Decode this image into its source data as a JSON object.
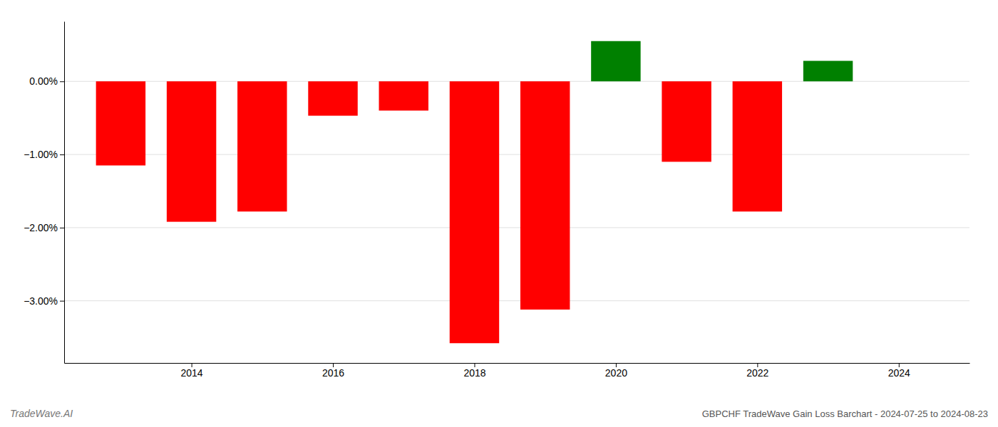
{
  "chart_data": {
    "type": "bar",
    "title": "GBPCHF TradeWave Gain Loss Barchart - 2024-07-25 to 2024-08-23",
    "annotations": [
      "TradeWave.AI"
    ],
    "x": [
      2013,
      2014,
      2015,
      2016,
      2017,
      2018,
      2019,
      2020,
      2021,
      2022,
      2023
    ],
    "values": [
      -1.15,
      -1.92,
      -1.78,
      -0.47,
      -0.4,
      -3.58,
      -3.12,
      0.55,
      -1.1,
      -1.78,
      0.28
    ],
    "colors": [
      "#ff0000",
      "#ff0000",
      "#ff0000",
      "#ff0000",
      "#ff0000",
      "#ff0000",
      "#ff0000",
      "#008000",
      "#ff0000",
      "#ff0000",
      "#008000"
    ],
    "xlim": [
      2012.2,
      2025.0
    ],
    "xticks": [
      2014,
      2016,
      2018,
      2020,
      2022,
      2024
    ],
    "ylim": [
      -3.85,
      0.82
    ],
    "yticks": [
      {
        "value": 0.0,
        "label": "0.00%"
      },
      {
        "value": -1.0,
        "label": "−1.00%"
      },
      {
        "value": -2.0,
        "label": "−2.00%"
      },
      {
        "value": -3.0,
        "label": "−3.00%"
      }
    ],
    "grid": true
  }
}
